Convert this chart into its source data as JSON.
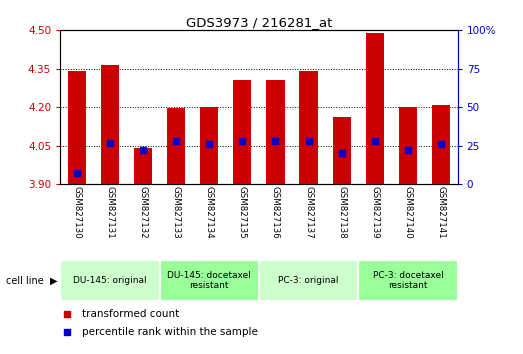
{
  "title": "GDS3973 / 216281_at",
  "samples": [
    "GSM827130",
    "GSM827131",
    "GSM827132",
    "GSM827133",
    "GSM827134",
    "GSM827135",
    "GSM827136",
    "GSM827137",
    "GSM827138",
    "GSM827139",
    "GSM827140",
    "GSM827141"
  ],
  "transformed_count": [
    4.34,
    4.365,
    4.04,
    4.195,
    4.2,
    4.305,
    4.305,
    4.34,
    4.16,
    4.49,
    4.2,
    4.21
  ],
  "percentile_rank": [
    7,
    27,
    22,
    28,
    26,
    28,
    28,
    28,
    20,
    28,
    22,
    26
  ],
  "ylim_left": [
    3.9,
    4.5
  ],
  "ylim_right": [
    0,
    100
  ],
  "yticks_left": [
    3.9,
    4.05,
    4.2,
    4.35,
    4.5
  ],
  "yticks_right": [
    0,
    25,
    50,
    75,
    100
  ],
  "bar_color": "#cc0000",
  "dot_color": "#0000cc",
  "cell_line_groups": [
    {
      "label": "DU-145: original",
      "start": 0,
      "end": 3,
      "color": "#ccffcc"
    },
    {
      "label": "DU-145: docetaxel\nresistant",
      "start": 3,
      "end": 6,
      "color": "#99ff99"
    },
    {
      "label": "PC-3: original",
      "start": 6,
      "end": 9,
      "color": "#ccffcc"
    },
    {
      "label": "PC-3: docetaxel\nresistant",
      "start": 9,
      "end": 12,
      "color": "#99ff99"
    }
  ],
  "legend_items": [
    {
      "color": "#cc0000",
      "label": "transformed count"
    },
    {
      "color": "#0000cc",
      "label": "percentile rank within the sample"
    }
  ],
  "bar_width": 0.55,
  "background_color": "#ffffff",
  "tick_label_color_left": "#cc0000",
  "tick_label_color_right": "#0000cc",
  "label_bg_color": "#d8d8d8",
  "separator_color": "#ffffff"
}
